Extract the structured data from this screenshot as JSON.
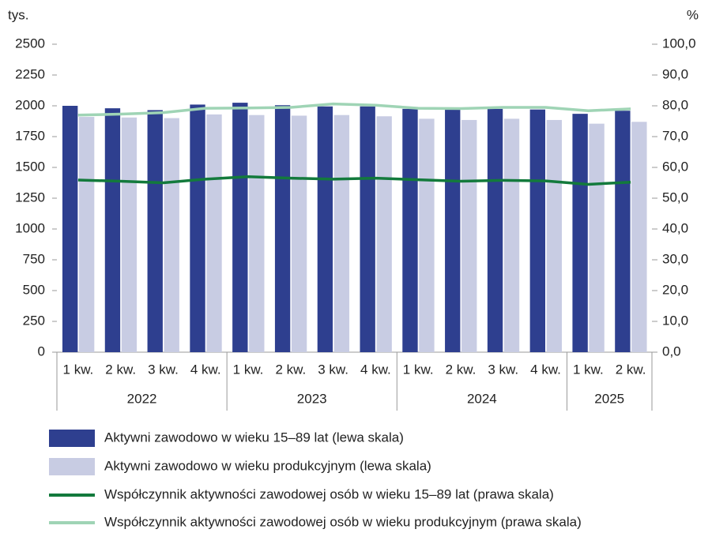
{
  "chart_data": {
    "type": "bar",
    "y_unit_label": "tys.",
    "y2_unit_label": "%",
    "groups": [
      {
        "label": "2022",
        "categories": [
          "1 kw.",
          "2 kw.",
          "3 kw.",
          "4 kw."
        ]
      },
      {
        "label": "2023",
        "categories": [
          "1 kw.",
          "2 kw.",
          "3 kw.",
          "4 kw."
        ]
      },
      {
        "label": "2024",
        "categories": [
          "1 kw.",
          "2 kw.",
          "3 kw.",
          "4 kw."
        ]
      },
      {
        "label": "2025",
        "categories": [
          "1 kw.",
          "2 kw."
        ]
      }
    ],
    "series": [
      {
        "name": "Aktywni zawodowo w wieku 15–89 lat (lewa skala)",
        "type": "bar",
        "color": "#2e3f8f",
        "values": [
          2000,
          1980,
          1965,
          2010,
          2025,
          2005,
          1995,
          1995,
          1975,
          1970,
          1975,
          1970,
          1935,
          1960
        ]
      },
      {
        "name": "Aktywni zawodowo w wieku produkcyjnym (lewa skala)",
        "type": "bar",
        "color": "#c8cce3",
        "values": [
          1910,
          1905,
          1900,
          1930,
          1925,
          1920,
          1925,
          1915,
          1895,
          1885,
          1895,
          1885,
          1855,
          1870
        ]
      },
      {
        "name": "Współczynnik aktywności zawodowej osób w wieku 15–89 lat (prawa skala)",
        "type": "line",
        "axis": "y2",
        "color": "#137a3c",
        "values": [
          55.9,
          55.5,
          55.0,
          56.2,
          57.0,
          56.5,
          56.2,
          56.5,
          56.0,
          55.5,
          55.8,
          55.6,
          54.5,
          55.2
        ]
      },
      {
        "name": "Współczynnik aktywności zawodowej osób w wieku produkcyjnym (prawa skala)",
        "type": "line",
        "axis": "y2",
        "color": "#9fd4b5",
        "values": [
          77.0,
          77.3,
          77.8,
          79.2,
          79.3,
          79.5,
          80.6,
          80.2,
          79.2,
          79.1,
          79.5,
          79.5,
          78.4,
          79.0
        ]
      }
    ],
    "ylim": [
      0,
      2500
    ],
    "yticks": [
      0,
      250,
      500,
      750,
      1000,
      1250,
      1500,
      1750,
      2000,
      2250,
      2500
    ],
    "y2lim": [
      0,
      100
    ],
    "y2ticks": [
      {
        "value": 0,
        "label": "0,0"
      },
      {
        "value": 10,
        "label": "10,0"
      },
      {
        "value": 20,
        "label": "20,0"
      },
      {
        "value": 30,
        "label": "30,0"
      },
      {
        "value": 40,
        "label": "40,0"
      },
      {
        "value": 50,
        "label": "50,0"
      },
      {
        "value": 60,
        "label": "60,0"
      },
      {
        "value": 70,
        "label": "70,0"
      },
      {
        "value": 80,
        "label": "80,0"
      },
      {
        "value": 90,
        "label": "90,0"
      },
      {
        "value": {
          "value": 100
        },
        "label": "100,0"
      }
    ],
    "grid": false,
    "legend": "bottom"
  }
}
